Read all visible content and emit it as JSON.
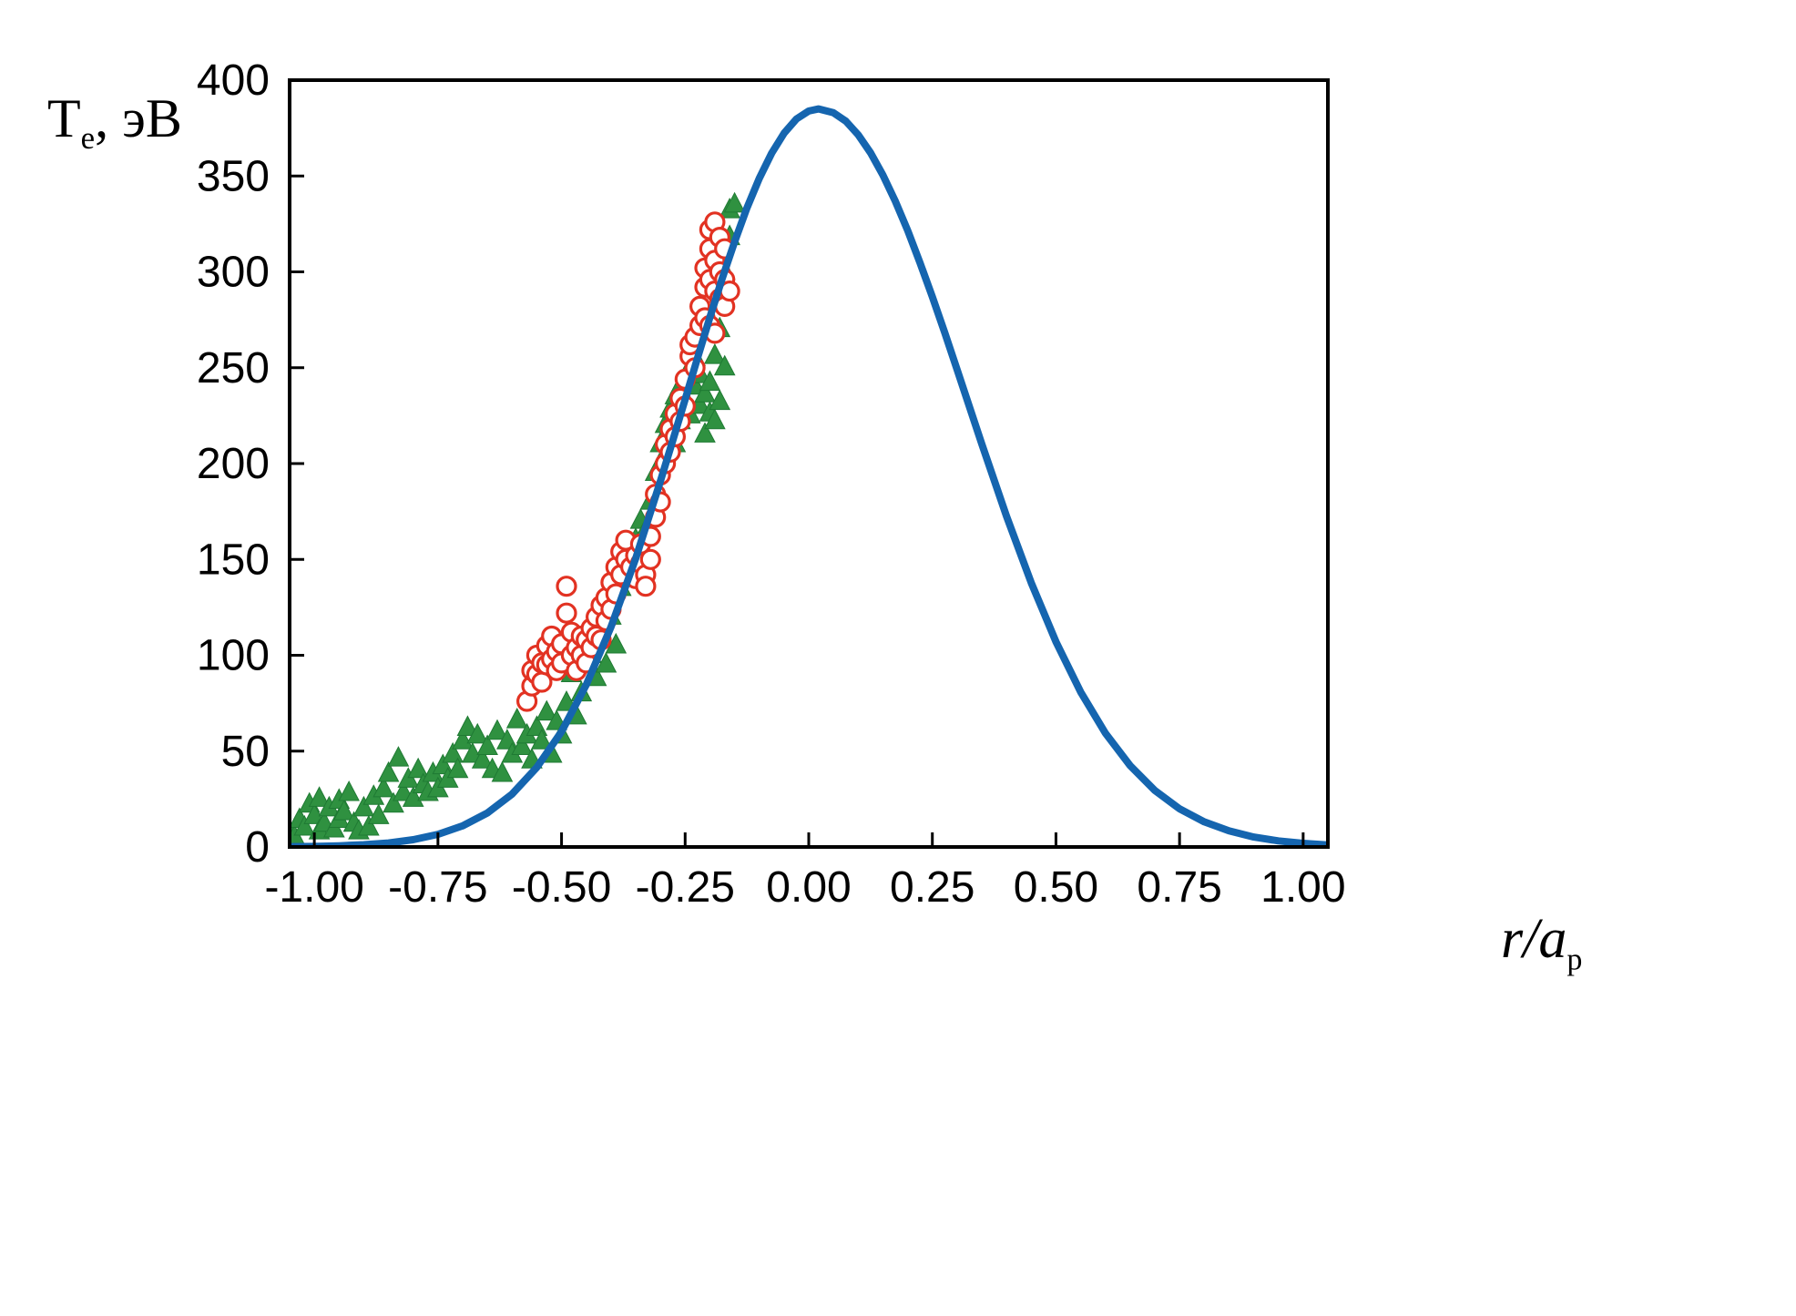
{
  "page": {
    "background": "#ffffff"
  },
  "axis_titles": {
    "y": {
      "main": "T",
      "sub": "e",
      "rest": ", эВ"
    },
    "x": {
      "main": "r/a",
      "sub": "p"
    }
  },
  "chart_data": {
    "type": "scatter",
    "title": "",
    "xlabel": "r/a_p",
    "ylabel": "T_e, эВ",
    "xlim": [
      -1.05,
      1.05
    ],
    "ylim": [
      0,
      400
    ],
    "grid": false,
    "legend": "none",
    "x_ticks": {
      "values": [
        -1.0,
        -0.75,
        -0.5,
        -0.25,
        0.0,
        0.25,
        0.5,
        0.75,
        1.0
      ],
      "labels": [
        "-1.00",
        "-0.75",
        "-0.50",
        "-0.25",
        "0.00",
        "0.25",
        "0.50",
        "0.75",
        "1.00"
      ]
    },
    "y_ticks": {
      "values": [
        0,
        50,
        100,
        150,
        200,
        250,
        300,
        350,
        400
      ],
      "labels": [
        "0",
        "50",
        "100",
        "150",
        "200",
        "250",
        "300",
        "350",
        "400"
      ]
    },
    "series": [
      {
        "name": "blue-model-curve",
        "type": "line",
        "color": "#1565af",
        "stroke_width": 8,
        "points": [
          [
            -1.05,
            0.2
          ],
          [
            -1.0,
            0.3
          ],
          [
            -0.95,
            0.6
          ],
          [
            -0.9,
            1.2
          ],
          [
            -0.85,
            2.1
          ],
          [
            -0.8,
            3.8
          ],
          [
            -0.75,
            6.6
          ],
          [
            -0.7,
            11.0
          ],
          [
            -0.65,
            17.7
          ],
          [
            -0.6,
            27.6
          ],
          [
            -0.55,
            41.5
          ],
          [
            -0.5,
            60.2
          ],
          [
            -0.45,
            84.6
          ],
          [
            -0.4,
            114.8
          ],
          [
            -0.35,
            150.5
          ],
          [
            -0.3,
            190.8
          ],
          [
            -0.275,
            212.0
          ],
          [
            -0.25,
            233.5
          ],
          [
            -0.225,
            255.1
          ],
          [
            -0.2,
            276.2
          ],
          [
            -0.175,
            296.6
          ],
          [
            -0.15,
            315.7
          ],
          [
            -0.125,
            333.3
          ],
          [
            -0.1,
            348.8
          ],
          [
            -0.075,
            361.9
          ],
          [
            -0.05,
            372.3
          ],
          [
            -0.025,
            379.7
          ],
          [
            0.0,
            383.9
          ],
          [
            0.02,
            385.0
          ],
          [
            0.05,
            383.0
          ],
          [
            0.075,
            378.6
          ],
          [
            0.1,
            371.5
          ],
          [
            0.125,
            362.1
          ],
          [
            0.15,
            350.5
          ],
          [
            0.175,
            336.9
          ],
          [
            0.2,
            321.6
          ],
          [
            0.225,
            304.8
          ],
          [
            0.25,
            287.0
          ],
          [
            0.275,
            268.3
          ],
          [
            0.3,
            249.0
          ],
          [
            0.35,
            210.2
          ],
          [
            0.4,
            172.6
          ],
          [
            0.45,
            137.8
          ],
          [
            0.5,
            107.1
          ],
          [
            0.55,
            80.8
          ],
          [
            0.6,
            59.4
          ],
          [
            0.65,
            42.4
          ],
          [
            0.7,
            29.5
          ],
          [
            0.75,
            19.9
          ],
          [
            0.8,
            13.1
          ],
          [
            0.85,
            8.4
          ],
          [
            0.9,
            5.2
          ],
          [
            0.95,
            3.2
          ],
          [
            1.0,
            1.9
          ],
          [
            1.05,
            1.1
          ]
        ]
      },
      {
        "name": "green-filled-triangles",
        "type": "scatter",
        "marker": "triangle-filled",
        "color": "#2f9140",
        "edge_color": "#1f7a33",
        "size": 22,
        "points": [
          [
            -1.05,
            8
          ],
          [
            -1.04,
            5
          ],
          [
            -1.03,
            14
          ],
          [
            -1.02,
            10
          ],
          [
            -1.01,
            22
          ],
          [
            -1.0,
            16
          ],
          [
            -0.99,
            25
          ],
          [
            -0.99,
            8
          ],
          [
            -0.98,
            12
          ],
          [
            -0.97,
            20
          ],
          [
            -0.96,
            9
          ],
          [
            -0.95,
            24
          ],
          [
            -0.95,
            14
          ],
          [
            -0.94,
            18
          ],
          [
            -0.93,
            28
          ],
          [
            -0.92,
            12
          ],
          [
            -0.91,
            8
          ],
          [
            -0.9,
            20
          ],
          [
            -0.89,
            10
          ],
          [
            -0.88,
            26
          ],
          [
            -0.87,
            16
          ],
          [
            -0.86,
            30
          ],
          [
            -0.85,
            38
          ],
          [
            -0.84,
            22
          ],
          [
            -0.83,
            46
          ],
          [
            -0.82,
            28
          ],
          [
            -0.81,
            35
          ],
          [
            -0.8,
            25
          ],
          [
            -0.79,
            40
          ],
          [
            -0.78,
            32
          ],
          [
            -0.77,
            28
          ],
          [
            -0.76,
            38
          ],
          [
            -0.75,
            30
          ],
          [
            -0.74,
            42
          ],
          [
            -0.73,
            35
          ],
          [
            -0.72,
            48
          ],
          [
            -0.71,
            40
          ],
          [
            -0.7,
            55
          ],
          [
            -0.69,
            62
          ],
          [
            -0.68,
            48
          ],
          [
            -0.67,
            58
          ],
          [
            -0.66,
            45
          ],
          [
            -0.65,
            52
          ],
          [
            -0.64,
            40
          ],
          [
            -0.63,
            60
          ],
          [
            -0.62,
            38
          ],
          [
            -0.61,
            55
          ],
          [
            -0.6,
            48
          ],
          [
            -0.59,
            66
          ],
          [
            -0.58,
            52
          ],
          [
            -0.57,
            58
          ],
          [
            -0.56,
            45
          ],
          [
            -0.55,
            62
          ],
          [
            -0.54,
            55
          ],
          [
            -0.53,
            70
          ],
          [
            -0.52,
            48
          ],
          [
            -0.51,
            65
          ],
          [
            -0.5,
            58
          ],
          [
            -0.49,
            75
          ],
          [
            -0.48,
            90
          ],
          [
            -0.47,
            68
          ],
          [
            -0.46,
            80
          ],
          [
            -0.45,
            95
          ],
          [
            -0.44,
            100
          ],
          [
            -0.43,
            88
          ],
          [
            -0.42,
            110
          ],
          [
            -0.41,
            95
          ],
          [
            -0.4,
            120
          ],
          [
            -0.39,
            105
          ],
          [
            -0.38,
            135
          ],
          [
            -0.37,
            150
          ],
          [
            -0.36,
            140
          ],
          [
            -0.35,
            160
          ],
          [
            -0.34,
            170
          ],
          [
            -0.33,
            165
          ],
          [
            -0.32,
            180
          ],
          [
            -0.31,
            195
          ],
          [
            -0.3,
            210
          ],
          [
            -0.29,
            220
          ],
          [
            -0.29,
            205
          ],
          [
            -0.28,
            215
          ],
          [
            -0.28,
            228
          ],
          [
            -0.27,
            235
          ],
          [
            -0.27,
            210
          ],
          [
            -0.26,
            240
          ],
          [
            -0.26,
            222
          ],
          [
            -0.25,
            245
          ],
          [
            -0.25,
            232
          ],
          [
            -0.24,
            250
          ],
          [
            -0.24,
            225
          ],
          [
            -0.23,
            240
          ],
          [
            -0.23,
            255
          ],
          [
            -0.22,
            230
          ],
          [
            -0.22,
            246
          ],
          [
            -0.21,
            236
          ],
          [
            -0.21,
            215
          ],
          [
            -0.2,
            226
          ],
          [
            -0.2,
            242
          ],
          [
            -0.19,
            256
          ],
          [
            -0.19,
            222
          ],
          [
            -0.18,
            270
          ],
          [
            -0.18,
            232
          ],
          [
            -0.17,
            300
          ],
          [
            -0.17,
            250
          ],
          [
            -0.16,
            318
          ],
          [
            -0.16,
            332
          ],
          [
            -0.15,
            335
          ]
        ]
      },
      {
        "name": "red-open-circles",
        "type": "scatter",
        "marker": "circle-open",
        "color": "#e23222",
        "size": 20,
        "points": [
          [
            -0.57,
            76
          ],
          [
            -0.56,
            84
          ],
          [
            -0.56,
            92
          ],
          [
            -0.55,
            90
          ],
          [
            -0.55,
            100
          ],
          [
            -0.54,
            96
          ],
          [
            -0.54,
            86
          ],
          [
            -0.53,
            105
          ],
          [
            -0.53,
            95
          ],
          [
            -0.52,
            110
          ],
          [
            -0.52,
            98
          ],
          [
            -0.51,
            102
          ],
          [
            -0.51,
            92
          ],
          [
            -0.5,
            96
          ],
          [
            -0.5,
            106
          ],
          [
            -0.49,
            136
          ],
          [
            -0.49,
            122
          ],
          [
            -0.48,
            100
          ],
          [
            -0.48,
            112
          ],
          [
            -0.47,
            104
          ],
          [
            -0.47,
            92
          ],
          [
            -0.46,
            100
          ],
          [
            -0.46,
            110
          ],
          [
            -0.45,
            96
          ],
          [
            -0.45,
            108
          ],
          [
            -0.44,
            104
          ],
          [
            -0.44,
            114
          ],
          [
            -0.43,
            110
          ],
          [
            -0.43,
            120
          ],
          [
            -0.42,
            108
          ],
          [
            -0.42,
            126
          ],
          [
            -0.41,
            118
          ],
          [
            -0.41,
            130
          ],
          [
            -0.4,
            124
          ],
          [
            -0.4,
            138
          ],
          [
            -0.39,
            132
          ],
          [
            -0.39,
            146
          ],
          [
            -0.38,
            142
          ],
          [
            -0.38,
            154
          ],
          [
            -0.37,
            150
          ],
          [
            -0.37,
            160
          ],
          [
            -0.36,
            146
          ],
          [
            -0.35,
            152
          ],
          [
            -0.35,
            140
          ],
          [
            -0.34,
            148
          ],
          [
            -0.34,
            158
          ],
          [
            -0.33,
            142
          ],
          [
            -0.33,
            136
          ],
          [
            -0.32,
            150
          ],
          [
            -0.32,
            162
          ],
          [
            -0.31,
            184
          ],
          [
            -0.31,
            172
          ],
          [
            -0.3,
            194
          ],
          [
            -0.3,
            180
          ],
          [
            -0.29,
            200
          ],
          [
            -0.29,
            210
          ],
          [
            -0.28,
            206
          ],
          [
            -0.28,
            218
          ],
          [
            -0.27,
            214
          ],
          [
            -0.27,
            226
          ],
          [
            -0.26,
            234
          ],
          [
            -0.26,
            222
          ],
          [
            -0.25,
            244
          ],
          [
            -0.25,
            230
          ],
          [
            -0.24,
            256
          ],
          [
            -0.24,
            262
          ],
          [
            -0.23,
            250
          ],
          [
            -0.23,
            266
          ],
          [
            -0.22,
            272
          ],
          [
            -0.22,
            282
          ],
          [
            -0.21,
            292
          ],
          [
            -0.21,
            276
          ],
          [
            -0.21,
            302
          ],
          [
            -0.2,
            312
          ],
          [
            -0.2,
            296
          ],
          [
            -0.2,
            322
          ],
          [
            -0.2,
            272
          ],
          [
            -0.19,
            306
          ],
          [
            -0.19,
            326
          ],
          [
            -0.19,
            290
          ],
          [
            -0.19,
            268
          ],
          [
            -0.18,
            300
          ],
          [
            -0.18,
            318
          ],
          [
            -0.18,
            286
          ],
          [
            -0.17,
            296
          ],
          [
            -0.17,
            312
          ],
          [
            -0.17,
            282
          ],
          [
            -0.16,
            290
          ]
        ]
      }
    ]
  }
}
